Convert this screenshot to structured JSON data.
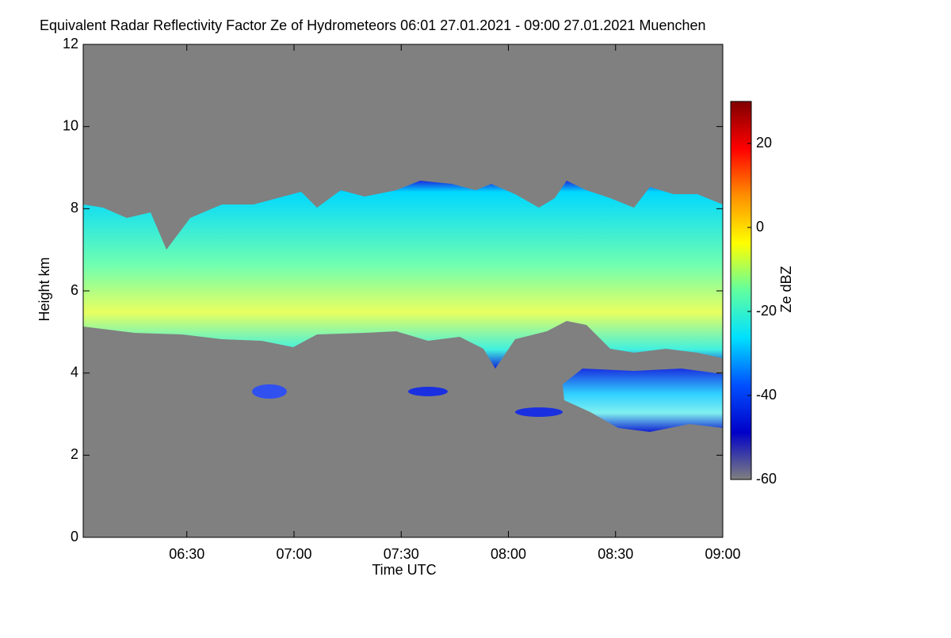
{
  "chart_data": {
    "type": "heatmap",
    "title": "Equivalent Radar Reflectivity Factor Ze of Hydrometeors   06:01 27.01.2021 - 09:00 27.01.2021 Muenchen",
    "x_label": "Time UTC",
    "y_label": "Height km",
    "colorbar_label": "Ze dBZ",
    "xlim": [
      "06:01",
      "09:00"
    ],
    "xticks": [
      "06:30",
      "07:00",
      "07:30",
      "08:00",
      "08:30",
      "09:00"
    ],
    "ylim": [
      0,
      12
    ],
    "yticks": [
      0,
      2,
      4,
      6,
      8,
      10,
      12
    ],
    "clim": [
      -60,
      30
    ],
    "cticks": [
      -60,
      -40,
      -20,
      0,
      20
    ],
    "colormap": [
      "#808080",
      "#0000c8",
      "#0050ff",
      "#00e0ff",
      "#60ffa0",
      "#ffff00",
      "#ff9000",
      "#ff0000",
      "#800000"
    ],
    "background": "#808080"
  }
}
